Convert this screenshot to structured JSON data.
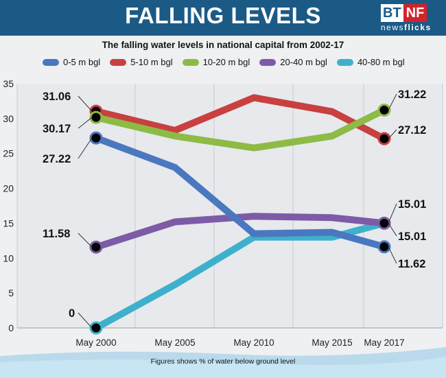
{
  "header": {
    "headline": "FALLING LEVELS",
    "logo_bt": "BT",
    "logo_nf": "NF",
    "logo_sub_a": "news",
    "logo_sub_b": "flicks"
  },
  "chart_data": {
    "type": "line",
    "title": "The falling water levels in national capital from 2002-17",
    "categories": [
      "May 2000",
      "May 2005",
      "May 2010",
      "May 2015",
      "May 2017"
    ],
    "ylim": [
      0,
      35
    ],
    "yticks": [
      0,
      5,
      10,
      15,
      20,
      25,
      30,
      35
    ],
    "grid": "vertical",
    "legend_position": "top",
    "series": [
      {
        "name": "0-5 m bgl",
        "color": "#4a78c0",
        "values": [
          27.22,
          23.0,
          13.5,
          13.7,
          11.62
        ],
        "start_label": "27.22",
        "end_label": "11.62"
      },
      {
        "name": "5-10 m bgl",
        "color": "#c8403f",
        "values": [
          31.06,
          28.3,
          33.0,
          31.0,
          27.12
        ],
        "start_label": "31.06",
        "end_label": "27.12"
      },
      {
        "name": "10-20 m bgl",
        "color": "#8dbb45",
        "values": [
          30.17,
          27.5,
          25.8,
          27.5,
          31.22
        ],
        "start_label": "30.17",
        "end_label": "31.22"
      },
      {
        "name": "20-40 m bgl",
        "color": "#7d5ba6",
        "values": [
          11.58,
          15.2,
          16.0,
          15.8,
          15.01
        ],
        "start_label": "11.58",
        "end_label": "15.01"
      },
      {
        "name": "40-80 m bgl",
        "color": "#3fb0cc",
        "values": [
          0,
          6.2,
          13.0,
          13.0,
          15.01
        ],
        "start_label": "0",
        "end_label": "15.01"
      }
    ]
  },
  "footnote": "Figures shows % of water below ground level"
}
